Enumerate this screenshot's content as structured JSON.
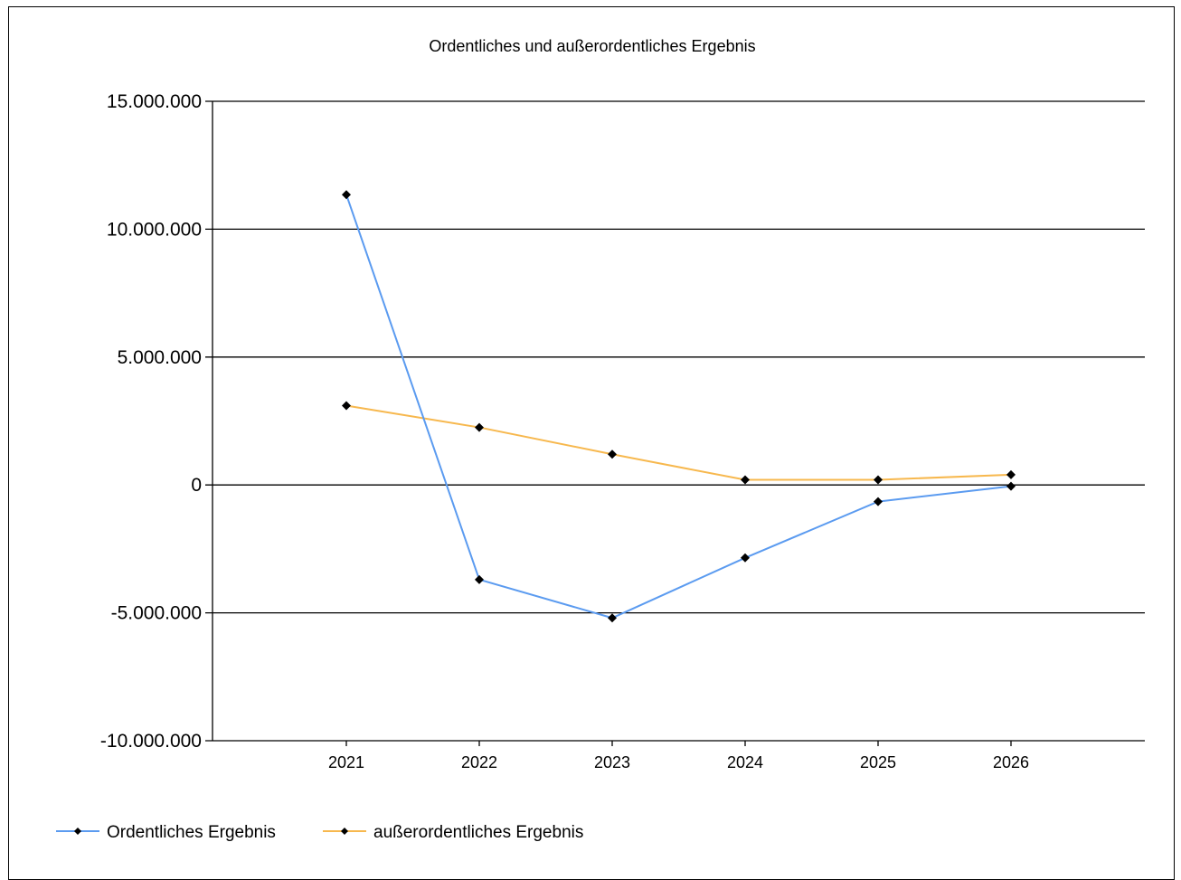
{
  "chart_data": {
    "type": "line",
    "title": "Ordentliches und außerordentliches Ergebnis",
    "xlabel": "",
    "ylabel": "",
    "categories": [
      "2021",
      "2022",
      "2023",
      "2024",
      "2025",
      "2026"
    ],
    "ylim": [
      -10000000,
      15000000
    ],
    "yticks": [
      15000000,
      10000000,
      5000000,
      0,
      -5000000,
      -10000000
    ],
    "ytick_labels": [
      "15.000.000",
      "10.000.000",
      "5.000.000",
      "0",
      "-5.000.000",
      "-10.000.000"
    ],
    "grid": "horizontal",
    "legend_position": "bottom-left",
    "series": [
      {
        "name": "Ordentliches Ergebnis",
        "color": "#5b9bf0",
        "values": [
          11350000,
          -3700000,
          -5200000,
          -2850000,
          -650000,
          -50000
        ]
      },
      {
        "name": "außerordentliches Ergebnis",
        "color": "#f7b84e",
        "values": [
          3100000,
          2250000,
          1200000,
          200000,
          200000,
          400000
        ]
      }
    ]
  }
}
